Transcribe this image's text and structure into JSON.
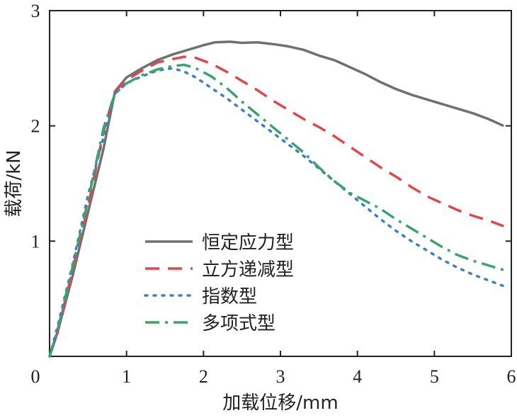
{
  "chart_data": {
    "type": "line",
    "xlabel": "加载位移/mm",
    "ylabel": "载荷/kN",
    "xlim": [
      0,
      6
    ],
    "ylim": [
      0,
      3
    ],
    "xticks": [
      0,
      1,
      2,
      3,
      4,
      5,
      6
    ],
    "yticks": [
      1,
      2,
      3
    ],
    "grid": false,
    "legend_position": "bottom-left",
    "series": [
      {
        "name": "恒定应力型",
        "color": "#707070",
        "dash": "solid",
        "points": [
          [
            0,
            0
          ],
          [
            0.1,
            0.2
          ],
          [
            0.3,
            0.7
          ],
          [
            0.5,
            1.25
          ],
          [
            0.7,
            1.8
          ],
          [
            0.85,
            2.3
          ],
          [
            1.0,
            2.42
          ],
          [
            1.2,
            2.5
          ],
          [
            1.4,
            2.57
          ],
          [
            1.6,
            2.62
          ],
          [
            1.8,
            2.66
          ],
          [
            2.0,
            2.7
          ],
          [
            2.15,
            2.725
          ],
          [
            2.35,
            2.73
          ],
          [
            2.5,
            2.72
          ],
          [
            2.7,
            2.725
          ],
          [
            2.9,
            2.71
          ],
          [
            3.1,
            2.69
          ],
          [
            3.3,
            2.66
          ],
          [
            3.5,
            2.61
          ],
          [
            3.7,
            2.57
          ],
          [
            3.9,
            2.51
          ],
          [
            4.1,
            2.45
          ],
          [
            4.3,
            2.38
          ],
          [
            4.5,
            2.32
          ],
          [
            4.7,
            2.27
          ],
          [
            4.9,
            2.23
          ],
          [
            5.1,
            2.19
          ],
          [
            5.3,
            2.15
          ],
          [
            5.5,
            2.11
          ],
          [
            5.7,
            2.06
          ],
          [
            5.9,
            2.0
          ]
        ]
      },
      {
        "name": "立方递减型",
        "color": "#e0474c",
        "dash": "dash",
        "points": [
          [
            0,
            0
          ],
          [
            0.1,
            0.2
          ],
          [
            0.3,
            0.75
          ],
          [
            0.5,
            1.3
          ],
          [
            0.7,
            1.95
          ],
          [
            0.85,
            2.3
          ],
          [
            1.0,
            2.4
          ],
          [
            1.2,
            2.48
          ],
          [
            1.4,
            2.55
          ],
          [
            1.6,
            2.58
          ],
          [
            1.75,
            2.6
          ],
          [
            1.9,
            2.59
          ],
          [
            2.1,
            2.54
          ],
          [
            2.3,
            2.47
          ],
          [
            2.5,
            2.39
          ],
          [
            2.7,
            2.31
          ],
          [
            2.9,
            2.22
          ],
          [
            3.1,
            2.14
          ],
          [
            3.3,
            2.06
          ],
          [
            3.5,
            1.99
          ],
          [
            3.7,
            1.91
          ],
          [
            3.9,
            1.82
          ],
          [
            4.1,
            1.73
          ],
          [
            4.3,
            1.64
          ],
          [
            4.5,
            1.56
          ],
          [
            4.7,
            1.47
          ],
          [
            4.9,
            1.39
          ],
          [
            5.1,
            1.33
          ],
          [
            5.3,
            1.27
          ],
          [
            5.5,
            1.22
          ],
          [
            5.7,
            1.18
          ],
          [
            5.9,
            1.13
          ]
        ]
      },
      {
        "name": "指数型",
        "color": "#3f7fc2",
        "dash": "dot",
        "points": [
          [
            0,
            0
          ],
          [
            0.1,
            0.25
          ],
          [
            0.3,
            0.8
          ],
          [
            0.5,
            1.4
          ],
          [
            0.7,
            1.9
          ],
          [
            0.85,
            2.28
          ],
          [
            1.0,
            2.37
          ],
          [
            1.2,
            2.43
          ],
          [
            1.4,
            2.48
          ],
          [
            1.6,
            2.5
          ],
          [
            1.75,
            2.47
          ],
          [
            1.9,
            2.42
          ],
          [
            2.1,
            2.33
          ],
          [
            2.3,
            2.24
          ],
          [
            2.5,
            2.14
          ],
          [
            2.7,
            2.04
          ],
          [
            2.9,
            1.94
          ],
          [
            3.1,
            1.84
          ],
          [
            3.3,
            1.74
          ],
          [
            3.5,
            1.63
          ],
          [
            3.7,
            1.52
          ],
          [
            3.9,
            1.41
          ],
          [
            4.1,
            1.3
          ],
          [
            4.3,
            1.19
          ],
          [
            4.5,
            1.09
          ],
          [
            4.7,
            1.0
          ],
          [
            4.9,
            0.92
          ],
          [
            5.1,
            0.84
          ],
          [
            5.3,
            0.77
          ],
          [
            5.5,
            0.71
          ],
          [
            5.7,
            0.66
          ],
          [
            5.9,
            0.61
          ]
        ]
      },
      {
        "name": "多项式型",
        "color": "#3aa36f",
        "dash": "dashdot",
        "points": [
          [
            0,
            0
          ],
          [
            0.1,
            0.22
          ],
          [
            0.3,
            0.78
          ],
          [
            0.5,
            1.35
          ],
          [
            0.7,
            1.98
          ],
          [
            0.85,
            2.28
          ],
          [
            1.0,
            2.37
          ],
          [
            1.2,
            2.44
          ],
          [
            1.4,
            2.49
          ],
          [
            1.6,
            2.52
          ],
          [
            1.75,
            2.53
          ],
          [
            1.9,
            2.5
          ],
          [
            2.1,
            2.43
          ],
          [
            2.3,
            2.33
          ],
          [
            2.5,
            2.21
          ],
          [
            2.7,
            2.1
          ],
          [
            2.9,
            1.99
          ],
          [
            3.1,
            1.88
          ],
          [
            3.3,
            1.77
          ],
          [
            3.5,
            1.64
          ],
          [
            3.7,
            1.52
          ],
          [
            3.9,
            1.42
          ],
          [
            4.1,
            1.35
          ],
          [
            4.3,
            1.28
          ],
          [
            4.5,
            1.19
          ],
          [
            4.7,
            1.11
          ],
          [
            4.9,
            1.03
          ],
          [
            5.1,
            0.95
          ],
          [
            5.3,
            0.88
          ],
          [
            5.5,
            0.83
          ],
          [
            5.7,
            0.79
          ],
          [
            5.9,
            0.75
          ]
        ]
      }
    ]
  }
}
